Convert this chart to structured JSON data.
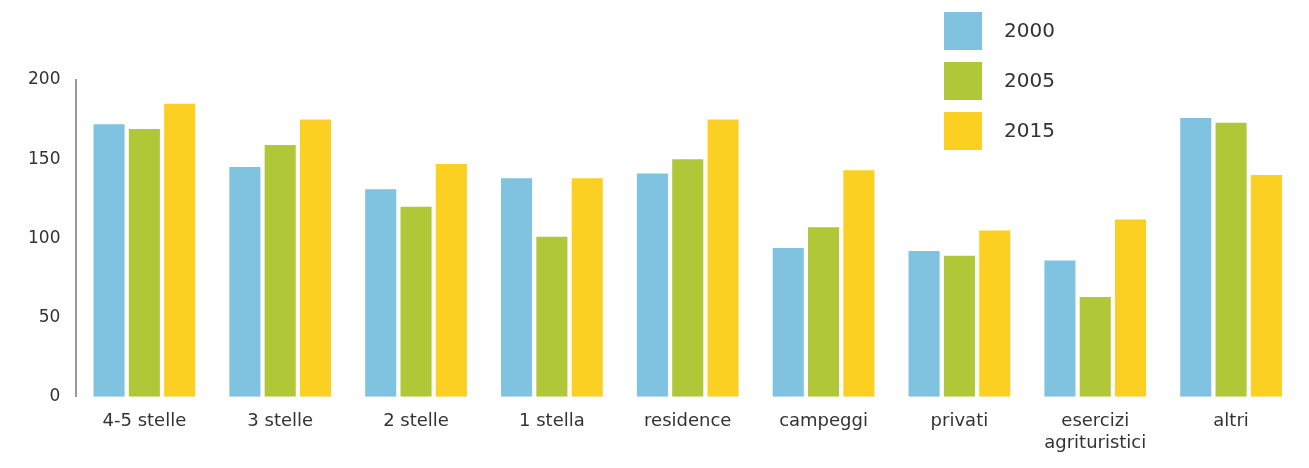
{
  "chart_data": {
    "type": "bar",
    "categories": [
      "4-5 stelle",
      "3 stelle",
      "2 stelle",
      "1 stella",
      "residence",
      "campeggi",
      "privati",
      "esercizi agrituristici",
      "altri"
    ],
    "series": [
      {
        "name": "2000",
        "color": "#7fc3e0",
        "values": [
          172,
          145,
          131,
          138,
          141,
          94,
          92,
          86,
          176
        ]
      },
      {
        "name": "2005",
        "color": "#b0c837",
        "values": [
          169,
          159,
          120,
          101,
          150,
          107,
          89,
          63,
          173
        ]
      },
      {
        "name": "2015",
        "color": "#fbd022",
        "values": [
          185,
          175,
          147,
          138,
          175,
          143,
          105,
          112,
          140
        ]
      }
    ],
    "ylim": [
      0,
      200
    ],
    "yticks": [
      0,
      50,
      100,
      150,
      200
    ],
    "grid": false,
    "legend": "top right"
  }
}
